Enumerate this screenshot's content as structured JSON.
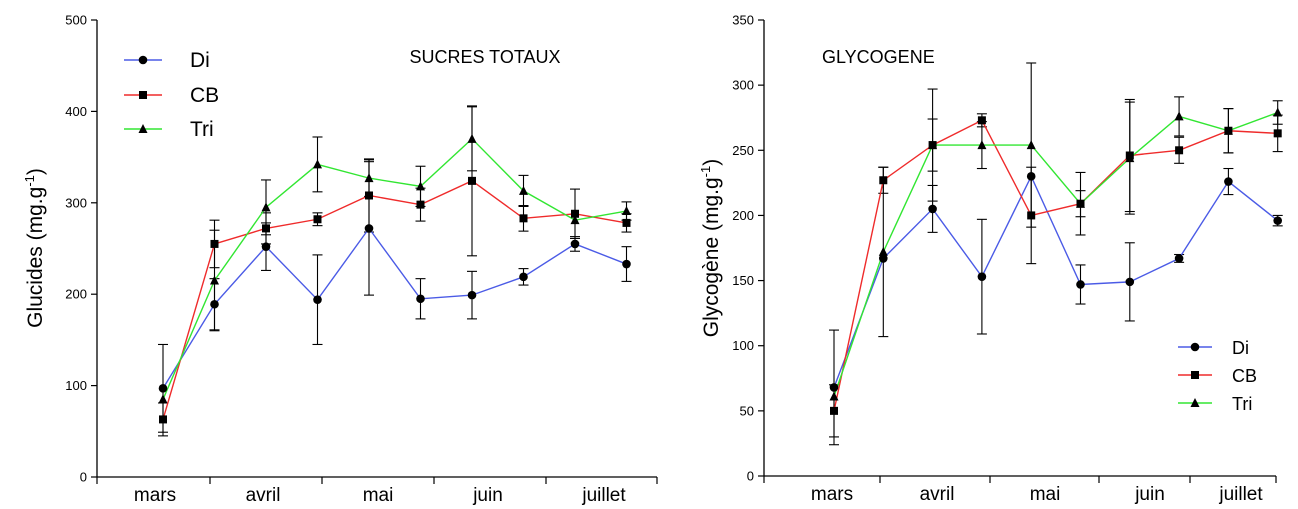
{
  "chart_data": [
    {
      "id": "left",
      "type": "line",
      "title": "SUCRES TOTAUX",
      "ylabel": "Glucides (mg.g-1)",
      "ylabel_base": "Glucides (mg.g",
      "ylabel_sup": "-1",
      "ylabel_close": ")",
      "ylim": [
        0,
        500
      ],
      "yticks": [
        0,
        100,
        200,
        300,
        400,
        500
      ],
      "ytick_labels": [
        "0",
        "100",
        "200",
        "300",
        "400",
        "500"
      ],
      "months": [
        "mars",
        "avril",
        "mai",
        "juin",
        "juillet"
      ],
      "grid": false,
      "legend_position": "top-left",
      "x": [
        1,
        2,
        3,
        4,
        5,
        6,
        7,
        8,
        9,
        10,
        11
      ],
      "series": [
        {
          "name": "Di",
          "color": "#4b5be6",
          "marker": "circle",
          "values": [
            97,
            189,
            252,
            194,
            272,
            195,
            199,
            219,
            255,
            233
          ],
          "errors": [
            48,
            28,
            26,
            49,
            73,
            22,
            26,
            9,
            8,
            19
          ],
          "x": [
            1,
            2,
            3,
            4,
            5,
            6,
            7,
            8,
            9,
            10
          ]
        },
        {
          "name": "CB",
          "color": "#ef2b2b",
          "marker": "square",
          "values": [
            63,
            255,
            272,
            282,
            308,
            298,
            324,
            283,
            288,
            278
          ],
          "errors": [
            18,
            26,
            17,
            7,
            40,
            18,
            82,
            14,
            27,
            10
          ],
          "x": [
            1,
            2,
            3,
            4,
            5,
            6,
            7,
            8,
            9,
            10
          ]
        },
        {
          "name": "Tri",
          "color": "#32e632",
          "marker": "triangle",
          "values": [
            85,
            215,
            295,
            342,
            327,
            318,
            370,
            313,
            281,
            291
          ],
          "errors": [
            0,
            55,
            30,
            30,
            20,
            22,
            35,
            17,
            0,
            10
          ],
          "x": [
            1,
            2,
            3,
            4,
            5,
            6,
            7,
            8,
            9,
            10
          ]
        }
      ]
    },
    {
      "id": "right",
      "type": "line",
      "title": "GLYCOGENE",
      "ylabel": "Glycogène (mg.g-1)",
      "ylabel_base": "Glycogène (mg.g",
      "ylabel_sup": "-1",
      "ylabel_close": ")",
      "ylim": [
        0,
        350
      ],
      "yticks": [
        0,
        50,
        100,
        150,
        200,
        250,
        300,
        350
      ],
      "ytick_labels": [
        "0",
        "50",
        "100",
        "150",
        "200",
        "250",
        "300",
        "350"
      ],
      "months": [
        "mars",
        "avril",
        "mai",
        "juin",
        "juillet"
      ],
      "grid": false,
      "legend_position": "bottom-right",
      "series": [
        {
          "name": "Di",
          "color": "#4b5be6",
          "marker": "circle",
          "values": [
            68,
            167,
            205,
            153,
            230,
            147,
            149,
            167,
            226,
            196
          ],
          "errors": [
            44,
            0,
            18,
            44,
            0,
            15,
            30,
            3,
            10,
            4
          ],
          "x": [
            1,
            2,
            3,
            4,
            5,
            6,
            7,
            8,
            9,
            10
          ]
        },
        {
          "name": "CB",
          "color": "#ef2b2b",
          "marker": "square",
          "values": [
            50,
            227,
            254,
            273,
            200,
            209,
            246,
            250,
            265,
            263
          ],
          "errors": [
            20,
            10,
            43,
            5,
            37,
            10,
            43,
            10,
            17,
            14
          ],
          "x": [
            1,
            2,
            3,
            4,
            5,
            6,
            7,
            8,
            9,
            10
          ]
        },
        {
          "name": "Tri",
          "color": "#32e632",
          "marker": "triangle",
          "values": [
            61,
            172,
            254,
            254,
            254,
            209,
            244,
            276,
            265,
            279
          ],
          "errors": [
            0,
            65,
            20,
            18,
            63,
            24,
            43,
            15,
            17,
            9
          ],
          "x": [
            1,
            2,
            3,
            4,
            5,
            6,
            7,
            8,
            9,
            10
          ]
        }
      ]
    }
  ]
}
